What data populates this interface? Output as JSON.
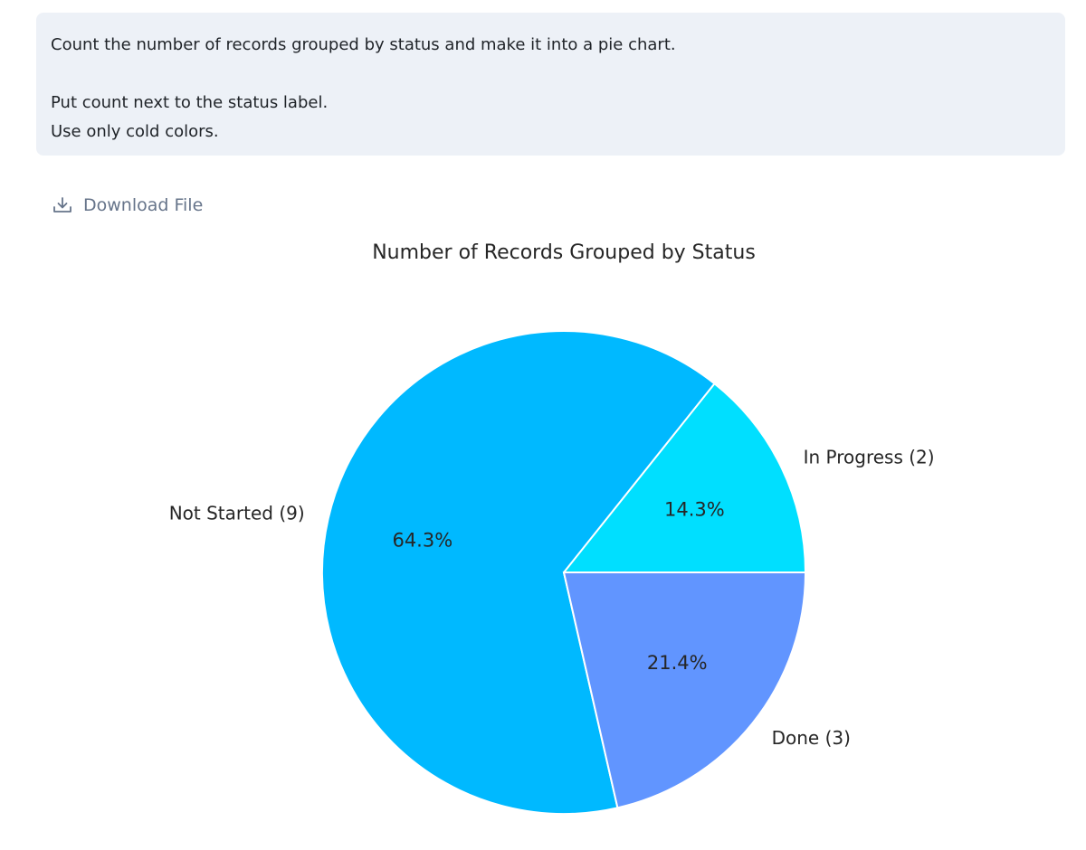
{
  "prompt": {
    "lines": [
      "Count the number of records grouped by status and make it into a pie chart.",
      "",
      "Put count next to the status label.",
      "Use only cold colors."
    ]
  },
  "download": {
    "label": "Download File",
    "icon": "download-icon"
  },
  "colors": {
    "prompt_background": "#edf1f7",
    "link": "#66748a"
  },
  "chart_data": {
    "type": "pie",
    "title": "Number of Records Grouped by Status",
    "slices": [
      {
        "label": "In Progress (2)",
        "category": "In Progress",
        "value": 2,
        "percent_label": "14.3%",
        "color": "#00dfff"
      },
      {
        "label": "Not Started (9)",
        "category": "Not Started",
        "value": 9,
        "percent_label": "64.3%",
        "color": "#00b9ff"
      },
      {
        "label": "Done (3)",
        "category": "Done",
        "value": 3,
        "percent_label": "21.4%",
        "color": "#6195ff"
      }
    ],
    "start_angle_deg": 0,
    "direction": "counterclockwise",
    "wedge_edge_color": "#ffffff"
  }
}
